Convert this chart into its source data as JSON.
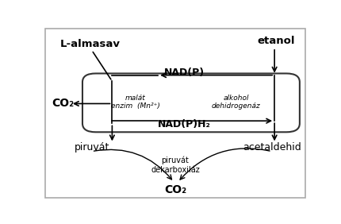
{
  "background_color": "#ffffff",
  "border_color": "#aaaaaa",
  "text_color": "#000000",
  "arrow_color": "#000000",
  "labels": {
    "L_almasav": "L-almasav",
    "etanol": "etanol",
    "CO2_left": "CO₂",
    "piruvat_left": "piruvát",
    "acetaldehid": "acetaldehid",
    "CO2_bottom": "CO₂",
    "NAD_P": "NAD(P)",
    "NAD_PH2": "NAD(P)H₂",
    "malat_enzim": "malát\nenzim  (Mn²⁺)",
    "alkohol_dehid": "alkohol\ndehidrogenáz",
    "piruvat_dekarboksilaz": "piruvát\ndekarboxiláz"
  }
}
